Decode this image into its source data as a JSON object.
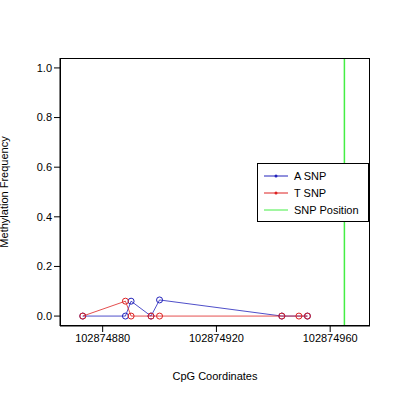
{
  "chart_data": {
    "type": "line",
    "x_label": "CpG Coordinates",
    "y_label": "Methylation Frequency",
    "xlim": [
      102874865,
      102874974
    ],
    "xticks": [
      102874880,
      102874920,
      102874960
    ],
    "ylim": [
      -0.04,
      1.04
    ],
    "yticks": [
      {
        "value": 0,
        "label": "0.0"
      },
      {
        "value": 0.2,
        "label": "0.2"
      },
      {
        "value": 0.4,
        "label": "0.4"
      },
      {
        "value": 0.6,
        "label": "0.6"
      },
      {
        "value": 0.8,
        "label": "0.8"
      },
      {
        "value": 1,
        "label": "1.0"
      }
    ],
    "legend": "right",
    "marker": "circle",
    "series": [
      {
        "name": "A SNP",
        "color": "#2222bb",
        "x": [
          102874873,
          102874888,
          102874890,
          102874897,
          102874900,
          102874943,
          102874952
        ],
        "values": [
          0,
          0,
          0.06,
          0,
          0.065,
          0,
          0
        ]
      },
      {
        "name": "T SNP",
        "color": "#dd2222",
        "x": [
          102874873,
          102874888,
          102874890,
          102874897,
          102874900,
          102874943,
          102874949,
          102874952
        ],
        "values": [
          0,
          0.06,
          0,
          0,
          0,
          0,
          0,
          0
        ]
      }
    ],
    "vlines": [
      {
        "name": "SNP Position",
        "x": 102874965,
        "color": "#44ee44"
      }
    ]
  }
}
